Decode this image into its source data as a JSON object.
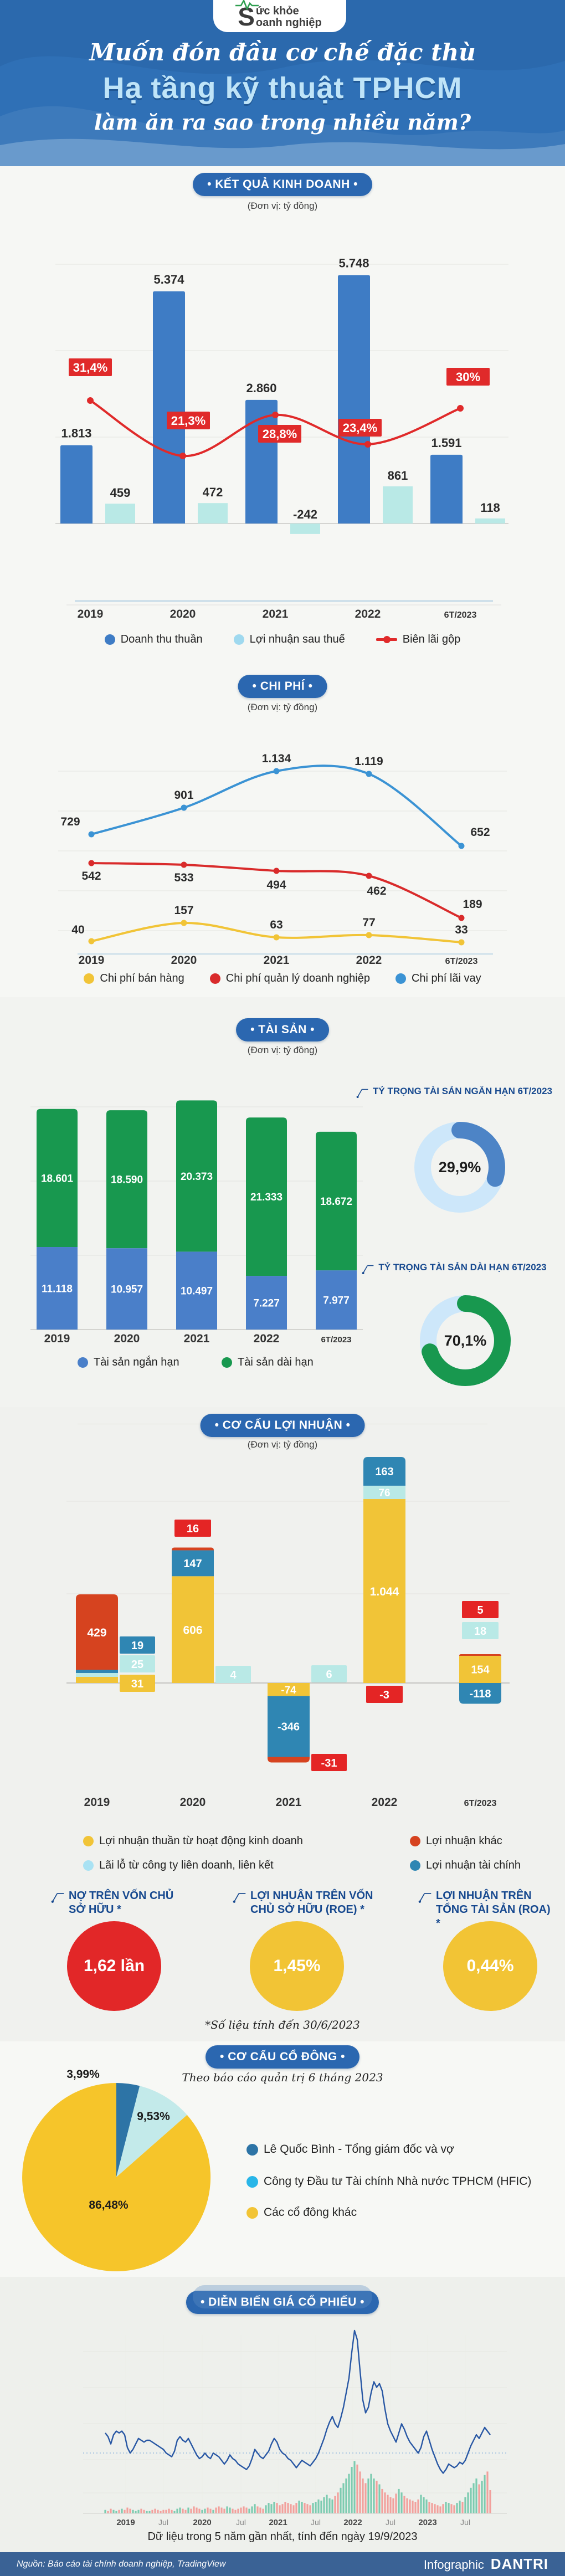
{
  "header": {
    "logo": {
      "s": "S",
      "top": "ức khỏe",
      "bottom": "oanh nghiệp"
    },
    "title_line1": "Muốn đón đầu cơ chế đặc thù",
    "title_line2": "Hạ tầng kỹ thuật TPHCM",
    "title_line3": "làm ăn ra sao trong nhiều năm?"
  },
  "unit_label": "(Đơn vị: tỷ đồng)",
  "pills": {
    "kinh_doanh": "• KẾT QUẢ KINH DOANH •",
    "chi_phi": "• CHI PHÍ •",
    "tai_san": "• TÀI SẢN •",
    "co_cau": "• CƠ CẤU LỢI NHUẬN •",
    "co_dong": "• CƠ CẤU CỔ ĐÔNG •",
    "gia_cp": "• DIỄN BIẾN GIÁ CỔ PHIẾU •"
  },
  "kpi": {
    "items": [
      {
        "title": "NỢ TRÊN VỐN CHỦ SỞ HỮU *",
        "value": "1,62 lần",
        "color": "#e22728"
      },
      {
        "title": "LỢI NHUẬN TRÊN VỐN CHỦ SỞ HỮU (ROE) *",
        "value": "1,45%",
        "color": "#f2c435"
      },
      {
        "title": "LỢI NHUẬN TRÊN TỔNG TÀI SẢN (ROA) *",
        "value": "0,44%",
        "color": "#f2c435"
      }
    ],
    "note": "*Số liệu tính đến 30/6/2023"
  },
  "shareholder_subtitle": "Theo báo cáo quản trị 6 tháng 2023",
  "stock_caption": "Dữ liệu trong 5 năm gần nhất, tính đến ngày 19/9/2023",
  "footer": {
    "source": "Nguồn: Báo cáo tài chính doanh nghiệp, TradingView",
    "label": "Infographic",
    "brand": "DANTRI"
  },
  "chart_data": [
    {
      "id": "ket-qua-kinh-doanh",
      "type": "bar+line",
      "title": "KẾT QUẢ KINH DOANH",
      "ylabel": "tỷ đồng",
      "categories": [
        "2019",
        "2020",
        "2021",
        "2022",
        "6T/2023"
      ],
      "series": [
        {
          "name": "Doanh thu thuần",
          "color": "#3e7cc5",
          "values": [
            1813,
            5374,
            2860,
            5748,
            1591
          ],
          "labels": [
            "1.813",
            "5.374",
            "2.860",
            "5.748",
            "1.591"
          ]
        },
        {
          "name": "Lợi nhuận sau thuế",
          "color": "#b9e9e6",
          "values": [
            459,
            472,
            -242,
            861,
            118
          ],
          "labels": [
            "459",
            "472",
            "-242",
            "861",
            "118"
          ]
        }
      ],
      "line": {
        "name": "Biên lãi gộp",
        "color": "#e02a2a",
        "values": [
          31.4,
          21.3,
          28.8,
          23.4,
          30
        ],
        "labels": [
          "31,4%",
          "21,3%",
          "28,8%",
          "23,4%",
          "30%"
        ]
      },
      "ylim": [
        0,
        6000
      ],
      "grid": true,
      "legend_position": "bottom"
    },
    {
      "id": "chi-phi",
      "type": "line",
      "title": "CHI PHÍ",
      "ylabel": "tỷ đồng",
      "categories": [
        "2019",
        "2020",
        "2021",
        "2022",
        "6T/2023"
      ],
      "series": [
        {
          "name": "Chi phí bán hàng",
          "color": "#f1c437",
          "values": [
            40,
            157,
            63,
            77,
            33
          ],
          "labels": [
            "40",
            "157",
            "63",
            "77",
            "33"
          ]
        },
        {
          "name": "Chi phí quản lý doanh nghiệp",
          "color": "#d92b2b",
          "values": [
            542,
            533,
            494,
            462,
            189
          ],
          "labels": [
            "542",
            "533",
            "494",
            "462",
            "189"
          ]
        },
        {
          "name": "Chi phí lãi vay",
          "color": "#3b93d4",
          "values": [
            729,
            901,
            1134,
            1119,
            652
          ],
          "labels": [
            "729",
            "901",
            "1.134",
            "1.119",
            "652"
          ]
        }
      ],
      "ylim": [
        0,
        1250
      ],
      "grid": true,
      "legend_position": "bottom"
    },
    {
      "id": "tai-san",
      "type": "stacked-bar",
      "title": "TÀI SẢN",
      "ylabel": "tỷ đồng",
      "categories": [
        "2019",
        "2020",
        "2021",
        "2022",
        "6T/2023"
      ],
      "series": [
        {
          "name": "Tài sản ngắn hạn",
          "color": "#4a7fc9",
          "values": [
            11118,
            10957,
            10497,
            7227,
            7977
          ],
          "labels": [
            "11.118",
            "10.957",
            "10.497",
            "7.227",
            "7.977"
          ]
        },
        {
          "name": "Tài sản dài hạn",
          "color": "#18984f",
          "values": [
            18601,
            18590,
            20373,
            21333,
            18672
          ],
          "labels": [
            "18.601",
            "18.590",
            "20.373",
            "21.333",
            "18.672"
          ]
        }
      ],
      "donuts": [
        {
          "title": "TỶ TRỌNG TÀI SẢN NGẮN HẠN 6T/2023",
          "pct": 29.9,
          "label": "29,9%",
          "color": "#4d84c6",
          "track": "#cde7fa"
        },
        {
          "title": "TỶ TRỌNG TÀI SẢN DÀI HẠN 6T/2023",
          "pct": 70.1,
          "label": "70,1%",
          "color": "#18984f",
          "track": "#cde7fa"
        }
      ],
      "ylim": [
        0,
        32000
      ]
    },
    {
      "id": "co-cau-loi-nhuan",
      "type": "stacked-bar-pos-neg",
      "title": "CƠ CẤU LỢI NHUẬN",
      "ylabel": "tỷ đồng",
      "categories": [
        "2019",
        "2020",
        "2021",
        "2022",
        "6T/2023"
      ],
      "components": {
        "hdkd": {
          "name": "Lợi nhuận thuần từ hoạt động kinh doanh",
          "color": "#f1c437"
        },
        "liendoanh": {
          "name": "Lãi lỗ từ công ty liên doanh, liên kết",
          "color": "#b9e9e6"
        },
        "khac": {
          "name": "Lợi nhuận khác",
          "color": "#d6431f"
        },
        "taichinh": {
          "name": "Lợi nhuận tài chính",
          "color": "#2f86b3"
        }
      },
      "box_red": "#e42525",
      "years": [
        {
          "cat": "2019",
          "hdkd": 31,
          "liendoanh": 25,
          "taichinh": 19,
          "khac": 429,
          "labels": {
            "hdkd": "31",
            "liendoanh": "25",
            "taichinh": "19",
            "khac": "429"
          }
        },
        {
          "cat": "2020",
          "hdkd": 606,
          "liendoanh": 4,
          "taichinh": 147,
          "khac": 16,
          "labels": {
            "hdkd": "606",
            "liendoanh": "4",
            "taichinh": "147",
            "khac": "16"
          }
        },
        {
          "cat": "2021",
          "hdkd": -74,
          "liendoanh": 6,
          "taichinh": -346,
          "khac": -31,
          "labels": {
            "hdkd": "-74",
            "liendoanh": "6",
            "taichinh": "-346",
            "khac": "-31"
          }
        },
        {
          "cat": "2022",
          "hdkd": 1044,
          "liendoanh": 76,
          "taichinh": 163,
          "khac": -3,
          "labels": {
            "hdkd": "1.044",
            "liendoanh": "76",
            "taichinh": "163",
            "khac": "-3"
          }
        },
        {
          "cat": "6T/2023",
          "hdkd": 154,
          "liendoanh": 18,
          "taichinh": -118,
          "khac": 5,
          "labels": {
            "hdkd": "154",
            "liendoanh": "18",
            "taichinh": "-118",
            "khac": "5"
          }
        }
      ]
    },
    {
      "id": "co-cau-co-dong",
      "type": "pie",
      "title": "CƠ CẤU CỔ ĐÔNG",
      "slices": [
        {
          "name": "Lê Quốc Bình - Tổng giám đốc và vợ",
          "pct": 3.99,
          "label": "3,99%",
          "color": "#2d74a6",
          "legend_color": "#2d74a6"
        },
        {
          "name": "Công ty Đầu tư Tài chính Nhà nước TPHCM (HFIC)",
          "pct": 9.53,
          "label": "9,53%",
          "color": "#c3eaea",
          "legend_color": "#29b6e8"
        },
        {
          "name": "Các cổ đông khác",
          "pct": 86.48,
          "label": "86,48%",
          "color": "#f6c52a",
          "legend_color": "#f2c435"
        }
      ]
    },
    {
      "id": "dien-bien-gia-co-phieu",
      "type": "line",
      "title": "DIỄN BIẾN GIÁ CỔ PHIẾU",
      "xlabels": [
        "2019",
        "Jul",
        "2020",
        "Jul",
        "2021",
        "Jul",
        "2022",
        "Jul",
        "2023",
        "Jul"
      ],
      "line_color": "#2857a4",
      "vol_up": "#7ccbb0",
      "vol_down": "#f2a09c",
      "price": [
        44,
        42,
        38,
        43,
        45,
        44,
        45,
        43,
        36,
        33,
        35,
        38,
        41,
        40,
        39,
        40,
        40,
        39,
        38,
        37,
        36,
        35,
        33,
        32,
        31,
        34,
        40,
        42,
        40,
        39,
        41,
        38,
        35,
        32,
        30,
        31,
        33,
        31,
        30,
        33,
        32,
        31,
        29,
        27,
        29,
        32,
        30,
        29,
        27,
        26,
        25,
        24,
        26,
        30,
        35,
        33,
        31,
        30,
        32,
        34,
        38,
        41,
        39,
        35,
        33,
        32,
        30,
        29,
        27,
        25,
        27,
        29,
        28,
        27,
        26,
        28,
        30,
        33,
        37,
        41,
        46,
        50,
        53,
        49,
        47,
        52,
        58,
        66,
        74,
        88,
        100,
        95,
        78,
        62,
        55,
        58,
        66,
        72,
        69,
        71,
        67,
        57,
        49,
        45,
        42,
        39,
        44,
        49,
        46,
        42,
        39,
        37,
        35,
        33,
        36,
        42,
        45,
        40,
        35,
        31,
        27,
        24,
        22,
        24,
        27,
        26,
        25,
        26,
        28,
        27,
        29,
        33,
        37,
        40,
        43,
        41,
        44,
        47,
        45,
        43
      ],
      "volume": [
        3,
        2,
        4,
        3,
        2,
        3,
        4,
        3,
        5,
        4,
        3,
        2,
        3,
        4,
        3,
        2,
        2,
        3,
        4,
        3,
        2,
        3,
        3,
        4,
        3,
        2,
        4,
        5,
        4,
        3,
        5,
        4,
        6,
        5,
        4,
        3,
        4,
        5,
        4,
        3,
        5,
        6,
        5,
        4,
        6,
        5,
        4,
        3,
        4,
        5,
        6,
        5,
        4,
        6,
        8,
        6,
        5,
        4,
        7,
        9,
        8,
        10,
        9,
        7,
        8,
        10,
        9,
        8,
        7,
        9,
        11,
        10,
        9,
        8,
        7,
        9,
        10,
        12,
        11,
        14,
        16,
        13,
        12,
        15,
        18,
        22,
        26,
        30,
        34,
        40,
        45,
        42,
        36,
        30,
        26,
        30,
        34,
        30,
        28,
        25,
        21,
        18,
        16,
        14,
        13,
        17,
        21,
        18,
        15,
        13,
        12,
        11,
        10,
        12,
        16,
        14,
        12,
        10,
        9,
        8,
        7,
        6,
        8,
        10,
        9,
        8,
        7,
        9,
        11,
        10,
        14,
        18,
        22,
        26,
        30,
        25,
        28,
        33,
        36,
        20
      ]
    }
  ]
}
